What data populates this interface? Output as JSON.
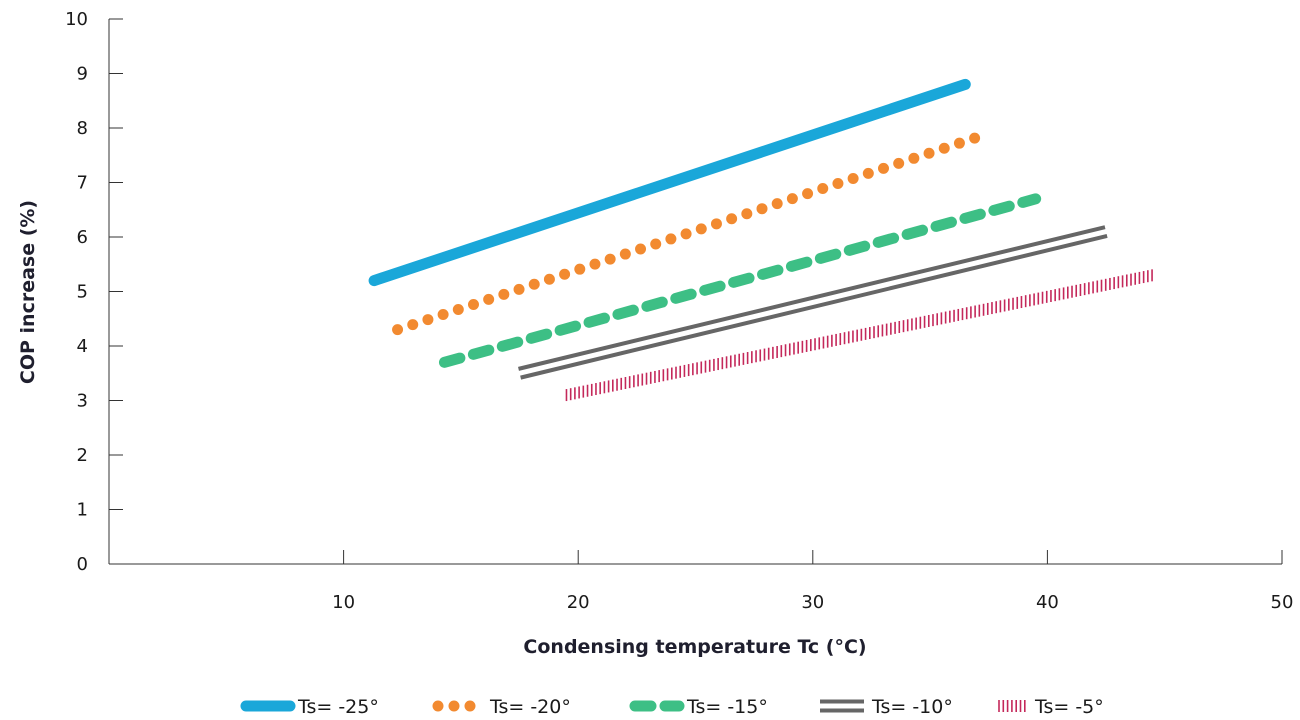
{
  "chart_data": {
    "type": "line",
    "title": "",
    "xlabel": "Condensing temperature Tc (°C)",
    "ylabel": "COP increase (%)",
    "xlim": [
      0,
      50
    ],
    "ylim": [
      0,
      10
    ],
    "x_ticks": [
      10,
      20,
      30,
      40,
      50
    ],
    "y_ticks": [
      0,
      1,
      2,
      3,
      4,
      5,
      6,
      7,
      8,
      9,
      10
    ],
    "grid": false,
    "legend_position": "bottom",
    "series": [
      {
        "name": "Ts= -25°",
        "style": "solid-thick",
        "color": "#1aa7d9",
        "points": [
          [
            11.3,
            5.2
          ],
          [
            36.5,
            8.8
          ]
        ]
      },
      {
        "name": "Ts= -20°",
        "style": "dotted",
        "color": "#f28a30",
        "points": [
          [
            12.3,
            4.3
          ],
          [
            37.5,
            7.9
          ]
        ]
      },
      {
        "name": "Ts= -15°",
        "style": "dashed",
        "color": "#3dbf85",
        "points": [
          [
            14.3,
            3.7
          ],
          [
            39.5,
            6.7
          ]
        ]
      },
      {
        "name": "Ts= -10°",
        "style": "double",
        "color": "#666666",
        "points": [
          [
            17.5,
            3.5
          ],
          [
            42.5,
            6.1
          ]
        ]
      },
      {
        "name": "Ts= -5°",
        "style": "hatched",
        "color": "#c4285a",
        "points": [
          [
            19.5,
            3.1
          ],
          [
            44.5,
            5.3
          ]
        ]
      }
    ]
  }
}
